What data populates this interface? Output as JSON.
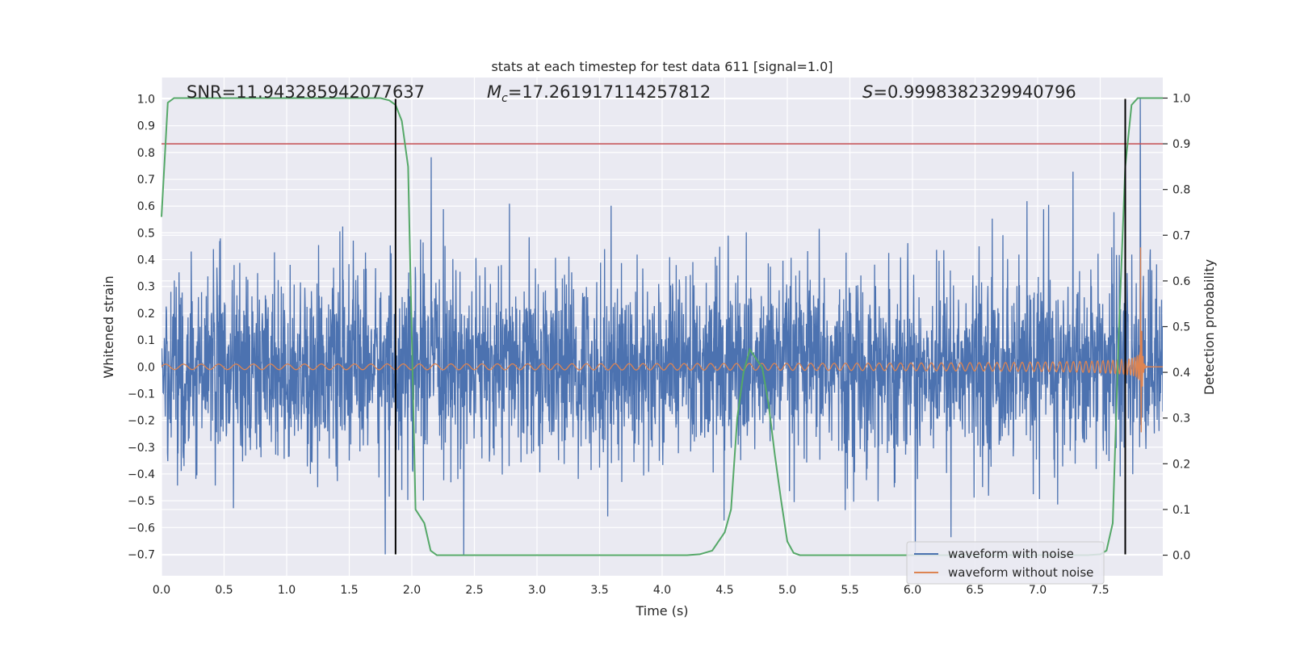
{
  "chart_data": {
    "type": "line",
    "title": "stats at each timestep for test data 611 [signal=1.0]",
    "xlabel": "Time (s)",
    "ylabel": "Whitened strain",
    "y2label": "Detection probability",
    "xlim": [
      0.0,
      8.0
    ],
    "ylim": [
      -0.78,
      1.08
    ],
    "y2lim": [
      -0.045,
      1.045
    ],
    "xticks": [
      0.0,
      0.5,
      1.0,
      1.5,
      2.0,
      2.5,
      3.0,
      3.5,
      4.0,
      4.5,
      5.0,
      5.5,
      6.0,
      6.5,
      7.0,
      7.5
    ],
    "yticks": [
      -0.7,
      -0.6,
      -0.5,
      -0.4,
      -0.3,
      -0.2,
      -0.1,
      0.0,
      0.1,
      0.2,
      0.3,
      0.4,
      0.5,
      0.6,
      0.7,
      0.8,
      0.9,
      1.0
    ],
    "y2ticks": [
      0.0,
      0.1,
      0.2,
      0.3,
      0.4,
      0.5,
      0.6,
      0.7,
      0.8,
      0.9,
      1.0
    ],
    "grid": true,
    "legend_position": "bottom-right",
    "annotations": [
      {
        "id": "snr",
        "text": "SNR=11.943285942077637",
        "x": 0.2,
        "y": 1.02
      },
      {
        "id": "mc",
        "text": "=17.261917114257812",
        "prefix": "M",
        "subscript": "c",
        "x": 2.6,
        "y": 1.02
      },
      {
        "id": "s",
        "text": "=0.9998382329940796",
        "prefix": "S",
        "x": 5.6,
        "y": 1.02
      }
    ],
    "threshold": {
      "axis": "y2",
      "value": 0.9,
      "color": "#c44e52"
    },
    "vlines": [
      {
        "x": 1.87,
        "ymin": -0.7,
        "ymax": 1.0,
        "color": "#000000"
      },
      {
        "x": 7.7,
        "ymin": -0.7,
        "ymax": 1.0,
        "color": "#000000"
      }
    ],
    "series": [
      {
        "name": "waveform with noise",
        "color": "#4c72b0",
        "axis": "y",
        "description_values": "noisy strain, roughly symmetric about 0 with amplitude ~0.3 and spikes to ~0.65, ending with a spike near 1.0 at t=7.82",
        "amplitude": 0.3,
        "peak": {
          "x": 7.82,
          "y": 1.0
        }
      },
      {
        "name": "waveform without noise",
        "color": "#dd8452",
        "axis": "y",
        "chirp": {
          "t_start": 0.0,
          "t_merge": 7.82,
          "amp_start": 0.01,
          "amp_peak": 0.63,
          "t_end": 8.0
        }
      },
      {
        "name": "",
        "color": "#55a868",
        "axis": "y2",
        "x": [
          0.0,
          0.05,
          0.1,
          0.15,
          0.2,
          0.5,
          1.0,
          1.5,
          1.75,
          1.82,
          1.87,
          1.92,
          1.97,
          2.03,
          2.1,
          2.15,
          2.2,
          2.3,
          3.0,
          3.5,
          4.0,
          4.2,
          4.3,
          4.4,
          4.5,
          4.55,
          4.6,
          4.65,
          4.7,
          4.75,
          4.8,
          4.85,
          4.9,
          4.95,
          5.0,
          5.05,
          5.1,
          5.5,
          6.0,
          6.5,
          7.0,
          7.4,
          7.5,
          7.55,
          7.6,
          7.65,
          7.7,
          7.75,
          7.8,
          7.85,
          7.9,
          8.0
        ],
        "y": [
          0.74,
          0.99,
          1.0,
          1.0,
          1.0,
          1.0,
          1.0,
          1.0,
          1.0,
          0.995,
          0.985,
          0.95,
          0.85,
          0.1,
          0.07,
          0.01,
          0.0,
          0.0,
          0.0,
          0.0,
          0.0,
          0.0,
          0.002,
          0.01,
          0.05,
          0.1,
          0.3,
          0.4,
          0.45,
          0.43,
          0.41,
          0.33,
          0.22,
          0.12,
          0.03,
          0.005,
          0.0,
          0.0,
          0.0,
          0.0,
          0.0,
          0.0,
          0.002,
          0.01,
          0.07,
          0.5,
          0.85,
          0.985,
          1.0,
          1.0,
          1.0,
          1.0
        ]
      }
    ]
  }
}
